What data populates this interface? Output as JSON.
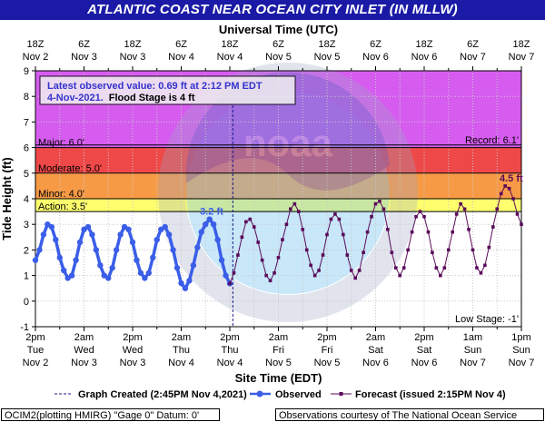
{
  "title": "ATLANTIC COAST NEAR OCEAN CITY INLET (IN MLLW)",
  "chart_data": {
    "type": "line",
    "top_axis_label": "Universal Time (UTC)",
    "xlabel": "Site Time (EDT)",
    "ylabel": "Tide Height (ft)",
    "ylim": [
      -1,
      9
    ],
    "grid": true,
    "x_ticks_local": [
      {
        "t": 0,
        "l1": "2pm",
        "l2": "Tue",
        "l3": "Nov 2"
      },
      {
        "t": 12,
        "l1": "2am",
        "l2": "Wed",
        "l3": "Nov 3"
      },
      {
        "t": 24,
        "l1": "2pm",
        "l2": "Wed",
        "l3": "Nov 3"
      },
      {
        "t": 36,
        "l1": "2am",
        "l2": "Thu",
        "l3": "Nov 4"
      },
      {
        "t": 48,
        "l1": "2pm",
        "l2": "Thu",
        "l3": "Nov 4"
      },
      {
        "t": 60,
        "l1": "2am",
        "l2": "Fri",
        "l3": "Nov 5"
      },
      {
        "t": 72,
        "l1": "2pm",
        "l2": "Fri",
        "l3": "Nov 5"
      },
      {
        "t": 84,
        "l1": "2am",
        "l2": "Sat",
        "l3": "Nov 6"
      },
      {
        "t": 96,
        "l1": "2pm",
        "l2": "Sat",
        "l3": "Nov 6"
      },
      {
        "t": 108,
        "l1": "1am",
        "l2": "Sun",
        "l3": "Nov 7"
      },
      {
        "t": 120,
        "l1": "1pm",
        "l2": "Sun",
        "l3": "Nov 7"
      }
    ],
    "x_ticks_utc": [
      {
        "t": 0,
        "l1": "18Z",
        "l2": "Nov 2"
      },
      {
        "t": 12,
        "l1": "6Z",
        "l2": "Nov 3"
      },
      {
        "t": 24,
        "l1": "18Z",
        "l2": "Nov 3"
      },
      {
        "t": 36,
        "l1": "6Z",
        "l2": "Nov 4"
      },
      {
        "t": 48,
        "l1": "18Z",
        "l2": "Nov 4"
      },
      {
        "t": 60,
        "l1": "6Z",
        "l2": "Nov 5"
      },
      {
        "t": 72,
        "l1": "18Z",
        "l2": "Nov 5"
      },
      {
        "t": 84,
        "l1": "6Z",
        "l2": "Nov 6"
      },
      {
        "t": 96,
        "l1": "18Z",
        "l2": "Nov 6"
      },
      {
        "t": 108,
        "l1": "6Z",
        "l2": "Nov 7"
      },
      {
        "t": 120,
        "l1": "18Z",
        "l2": "Nov 7"
      }
    ],
    "stages": [
      {
        "name": "Major",
        "label": "Major: 6.0'",
        "from": 6.0,
        "to": 9.0,
        "color": "#d65cf0"
      },
      {
        "name": "Moderate",
        "label": "Moderate: 5.0'",
        "from": 5.0,
        "to": 6.0,
        "color": "#ef4848"
      },
      {
        "name": "Minor",
        "label": "Minor: 4.0'",
        "from": 4.0,
        "to": 5.0,
        "color": "#f79a46"
      },
      {
        "name": "Action",
        "label": "Action: 3.5'",
        "from": 3.5,
        "to": 4.0,
        "color": "#ffff6e"
      }
    ],
    "record_label": "Record: 6.1'",
    "record_value": 6.1,
    "low_stage_label": "Low Stage: -1'",
    "graph_created_t": 48.75,
    "info_box": {
      "line1": "Latest observed value: 0.69 ft at 2:12 PM EDT",
      "line2_date": "4-Nov-2021.",
      "line2_flood": "Flood Stage is 4 ft"
    },
    "annotations": [
      {
        "text": "3.2 ft",
        "t": 43.5,
        "value": 3.2,
        "color": "#3a5ee8"
      },
      {
        "text": "4.5 ft",
        "t": 117.5,
        "value": 4.5,
        "color": "#5a0a5a"
      }
    ],
    "series": [
      {
        "name": "Observed",
        "color": "#3a5ee8",
        "points": [
          [
            0,
            1.6
          ],
          [
            1,
            2.0
          ],
          [
            2,
            2.6
          ],
          [
            3,
            3.0
          ],
          [
            4,
            2.9
          ],
          [
            5,
            2.4
          ],
          [
            6,
            1.7
          ],
          [
            7,
            1.2
          ],
          [
            8,
            0.9
          ],
          [
            9,
            1.0
          ],
          [
            10,
            1.6
          ],
          [
            11,
            2.3
          ],
          [
            12,
            2.8
          ],
          [
            13,
            2.9
          ],
          [
            14,
            2.6
          ],
          [
            15,
            2.0
          ],
          [
            16,
            1.4
          ],
          [
            17,
            1.0
          ],
          [
            18,
            0.9
          ],
          [
            19,
            1.3
          ],
          [
            20,
            2.0
          ],
          [
            21,
            2.6
          ],
          [
            22,
            2.9
          ],
          [
            23,
            2.8
          ],
          [
            24,
            2.3
          ],
          [
            25,
            1.6
          ],
          [
            26,
            1.1
          ],
          [
            27,
            0.9
          ],
          [
            28,
            1.1
          ],
          [
            29,
            1.7
          ],
          [
            30,
            2.4
          ],
          [
            31,
            2.8
          ],
          [
            32,
            2.9
          ],
          [
            33,
            2.6
          ],
          [
            34,
            2.0
          ],
          [
            35,
            1.3
          ],
          [
            36,
            0.7
          ],
          [
            37,
            0.5
          ],
          [
            38,
            0.8
          ],
          [
            39,
            1.4
          ],
          [
            40,
            2.1
          ],
          [
            41,
            2.7
          ],
          [
            42,
            3.0
          ],
          [
            43,
            3.2
          ],
          [
            44,
            3.0
          ],
          [
            45,
            2.4
          ],
          [
            46,
            1.6
          ],
          [
            47,
            1.0
          ],
          [
            48,
            0.69
          ]
        ]
      },
      {
        "name": "Forecast",
        "color": "#5a0a5a",
        "points": [
          [
            48,
            0.69
          ],
          [
            49,
            1.1
          ],
          [
            50,
            1.8
          ],
          [
            51,
            2.5
          ],
          [
            52,
            3.1
          ],
          [
            53,
            3.2
          ],
          [
            54,
            2.9
          ],
          [
            55,
            2.3
          ],
          [
            56,
            1.6
          ],
          [
            57,
            1.0
          ],
          [
            58,
            0.8
          ],
          [
            59,
            1.1
          ],
          [
            60,
            1.7
          ],
          [
            61,
            2.4
          ],
          [
            62,
            3.0
          ],
          [
            63,
            3.6
          ],
          [
            64,
            3.8
          ],
          [
            65,
            3.5
          ],
          [
            66,
            2.8
          ],
          [
            67,
            2.0
          ],
          [
            68,
            1.4
          ],
          [
            69,
            1.0
          ],
          [
            70,
            1.2
          ],
          [
            71,
            1.8
          ],
          [
            72,
            2.6
          ],
          [
            73,
            3.2
          ],
          [
            74,
            3.4
          ],
          [
            75,
            3.2
          ],
          [
            76,
            2.6
          ],
          [
            77,
            1.8
          ],
          [
            78,
            1.2
          ],
          [
            79,
            0.9
          ],
          [
            80,
            1.2
          ],
          [
            81,
            1.9
          ],
          [
            82,
            2.7
          ],
          [
            83,
            3.3
          ],
          [
            84,
            3.8
          ],
          [
            85,
            3.9
          ],
          [
            86,
            3.6
          ],
          [
            87,
            2.8
          ],
          [
            88,
            1.9
          ],
          [
            89,
            1.3
          ],
          [
            90,
            1.0
          ],
          [
            91,
            1.3
          ],
          [
            92,
            2.0
          ],
          [
            93,
            2.7
          ],
          [
            94,
            3.3
          ],
          [
            95,
            3.5
          ],
          [
            96,
            3.3
          ],
          [
            97,
            2.7
          ],
          [
            98,
            1.9
          ],
          [
            99,
            1.3
          ],
          [
            100,
            1.0
          ],
          [
            101,
            1.3
          ],
          [
            102,
            2.0
          ],
          [
            103,
            2.7
          ],
          [
            104,
            3.4
          ],
          [
            105,
            3.8
          ],
          [
            106,
            3.6
          ],
          [
            107,
            2.8
          ],
          [
            108,
            2.0
          ],
          [
            109,
            1.3
          ],
          [
            110,
            1.1
          ],
          [
            111,
            1.4
          ],
          [
            112,
            2.1
          ],
          [
            113,
            2.9
          ],
          [
            114,
            3.6
          ],
          [
            115,
            4.2
          ],
          [
            116,
            4.5
          ],
          [
            117,
            4.4
          ],
          [
            118,
            4.0
          ],
          [
            119,
            3.4
          ],
          [
            120,
            3.0
          ]
        ]
      }
    ]
  },
  "legend": {
    "graph_created": "Graph Created (2:45PM Nov 4,2021)",
    "observed": "Observed",
    "forecast": "Forecast (issued 2:15PM Nov 4)"
  },
  "footer": {
    "left": "OCIM2(plotting HMIRG) \"Gage 0\" Datum: 0'",
    "right": "Observations courtesy of The National Ocean Service"
  }
}
